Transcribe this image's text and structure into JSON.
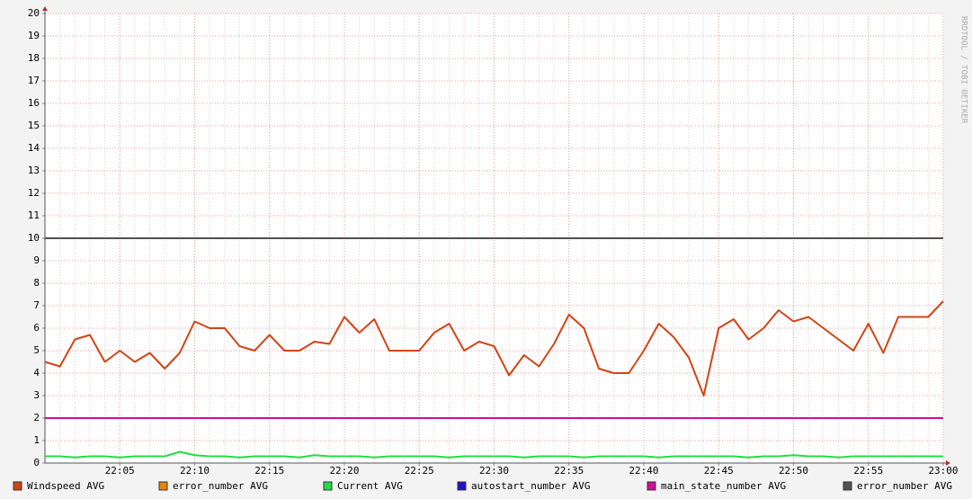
{
  "chart_data": {
    "type": "line",
    "watermark": "RRDTOOL / TOBI OETIKER",
    "x": [
      "22:00",
      "22:01",
      "22:02",
      "22:03",
      "22:04",
      "22:05",
      "22:06",
      "22:07",
      "22:08",
      "22:09",
      "22:10",
      "22:11",
      "22:12",
      "22:13",
      "22:14",
      "22:15",
      "22:16",
      "22:17",
      "22:18",
      "22:19",
      "22:20",
      "22:21",
      "22:22",
      "22:23",
      "22:24",
      "22:25",
      "22:26",
      "22:27",
      "22:28",
      "22:29",
      "22:30",
      "22:31",
      "22:32",
      "22:33",
      "22:34",
      "22:35",
      "22:36",
      "22:37",
      "22:38",
      "22:39",
      "22:40",
      "22:41",
      "22:42",
      "22:43",
      "22:44",
      "22:45",
      "22:46",
      "22:47",
      "22:48",
      "22:49",
      "22:50",
      "22:51",
      "22:52",
      "22:53",
      "22:54",
      "22:55",
      "22:56",
      "22:57",
      "22:58",
      "22:59",
      "23:00"
    ],
    "xticks": [
      "22:05",
      "22:10",
      "22:15",
      "22:20",
      "22:25",
      "22:30",
      "22:35",
      "22:40",
      "22:45",
      "22:50",
      "22:55",
      "23:00"
    ],
    "ylim": [
      0,
      20
    ],
    "yticks": [
      0,
      1,
      2,
      3,
      4,
      5,
      6,
      7,
      8,
      9,
      10,
      11,
      12,
      13,
      14,
      15,
      16,
      17,
      18,
      19,
      20
    ],
    "grid": true,
    "series": [
      {
        "name": "Windspeed AVG",
        "color": "#d24415",
        "values": [
          4.5,
          4.3,
          5.5,
          5.7,
          4.5,
          5.0,
          4.5,
          4.9,
          4.2,
          4.9,
          6.3,
          6.0,
          6.0,
          5.2,
          5.0,
          5.7,
          5.0,
          5.0,
          5.4,
          5.3,
          6.5,
          5.8,
          6.4,
          5.0,
          5.0,
          5.0,
          5.8,
          6.2,
          5.0,
          5.4,
          5.2,
          3.9,
          4.8,
          4.3,
          5.3,
          6.6,
          6.0,
          4.2,
          4.0,
          4.0,
          5.0,
          6.2,
          5.6,
          4.7,
          3.0,
          6.0,
          6.4,
          5.5,
          6.0,
          6.8,
          6.3,
          6.5,
          6.0,
          5.5,
          5.0,
          6.2,
          4.9,
          6.5,
          6.5,
          6.5,
          7.2
        ]
      },
      {
        "name": "error_number AVG",
        "color": "#e8810f",
        "values": [
          null,
          null,
          null,
          null,
          null,
          null,
          null,
          null,
          null,
          null,
          null,
          null,
          null,
          null,
          null,
          null,
          null,
          null,
          null,
          null,
          null,
          null,
          null,
          null,
          null,
          null,
          null,
          null,
          null,
          null,
          null,
          null,
          null,
          null,
          null,
          null,
          null,
          null,
          null,
          null,
          null,
          null,
          null,
          null,
          null,
          null,
          null,
          null,
          null,
          null,
          null,
          null,
          null,
          null,
          null,
          null,
          null,
          null,
          null,
          null,
          null
        ]
      },
      {
        "name": "Current AVG",
        "color": "#22dd44",
        "values": [
          0.3,
          0.3,
          0.25,
          0.3,
          0.3,
          0.25,
          0.3,
          0.3,
          0.3,
          0.5,
          0.35,
          0.3,
          0.3,
          0.25,
          0.3,
          0.3,
          0.3,
          0.25,
          0.35,
          0.3,
          0.3,
          0.3,
          0.25,
          0.3,
          0.3,
          0.3,
          0.3,
          0.25,
          0.3,
          0.3,
          0.3,
          0.3,
          0.25,
          0.3,
          0.3,
          0.3,
          0.25,
          0.3,
          0.3,
          0.3,
          0.3,
          0.25,
          0.3,
          0.3,
          0.3,
          0.3,
          0.3,
          0.25,
          0.3,
          0.3,
          0.35,
          0.3,
          0.3,
          0.25,
          0.3,
          0.3,
          0.3,
          0.3,
          0.3,
          0.3,
          0.3
        ]
      },
      {
        "name": "autostart_number AVG",
        "color": "#2211cc",
        "values": [
          null,
          null,
          null,
          null,
          null,
          null,
          null,
          null,
          null,
          null,
          null,
          null,
          null,
          null,
          null,
          null,
          null,
          null,
          null,
          null,
          null,
          null,
          null,
          null,
          null,
          null,
          null,
          null,
          null,
          null,
          null,
          null,
          null,
          null,
          null,
          null,
          null,
          null,
          null,
          null,
          null,
          null,
          null,
          null,
          null,
          null,
          null,
          null,
          null,
          null,
          null,
          null,
          null,
          null,
          null,
          null,
          null,
          null,
          null,
          null,
          null
        ]
      },
      {
        "name": "main_state_number AVG",
        "color": "#cc1199",
        "values": [
          2,
          2,
          2,
          2,
          2,
          2,
          2,
          2,
          2,
          2,
          2,
          2,
          2,
          2,
          2,
          2,
          2,
          2,
          2,
          2,
          2,
          2,
          2,
          2,
          2,
          2,
          2,
          2,
          2,
          2,
          2,
          2,
          2,
          2,
          2,
          2,
          2,
          2,
          2,
          2,
          2,
          2,
          2,
          2,
          2,
          2,
          2,
          2,
          2,
          2,
          2,
          2,
          2,
          2,
          2,
          2,
          2,
          2,
          2,
          2,
          2
        ]
      },
      {
        "name": "error_number AVG",
        "color": "#505050",
        "values": [
          10,
          10,
          10,
          10,
          10,
          10,
          10,
          10,
          10,
          10,
          10,
          10,
          10,
          10,
          10,
          10,
          10,
          10,
          10,
          10,
          10,
          10,
          10,
          10,
          10,
          10,
          10,
          10,
          10,
          10,
          10,
          10,
          10,
          10,
          10,
          10,
          10,
          10,
          10,
          10,
          10,
          10,
          10,
          10,
          10,
          10,
          10,
          10,
          10,
          10,
          10,
          10,
          10,
          10,
          10,
          10,
          10,
          10,
          10,
          10,
          10
        ]
      }
    ]
  }
}
